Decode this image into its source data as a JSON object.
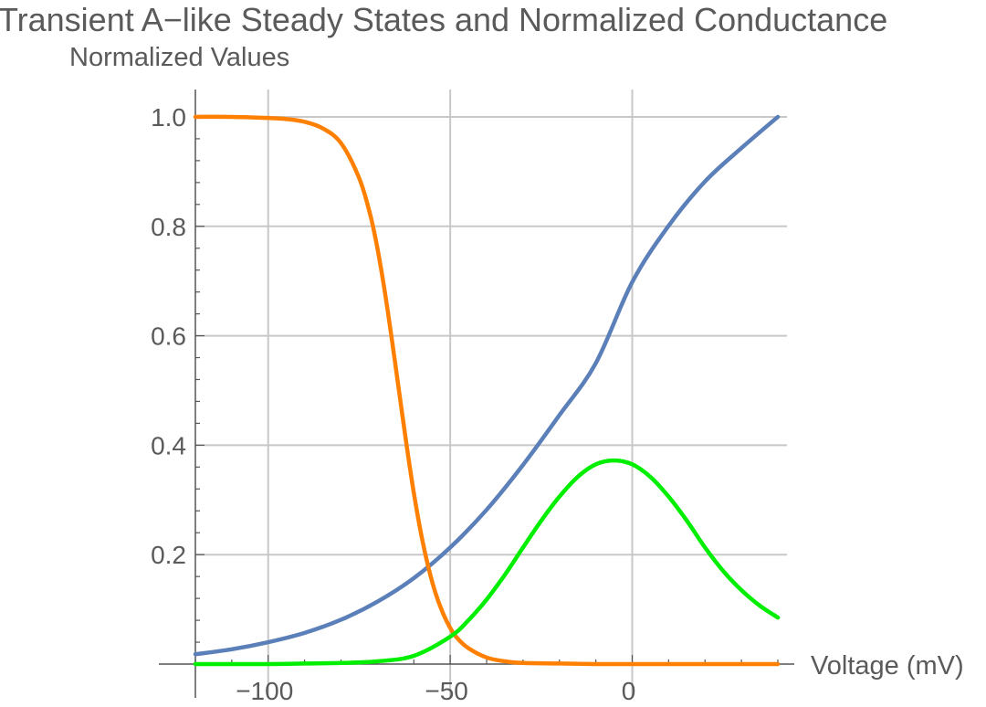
{
  "chart_data": {
    "type": "line",
    "title": "Transient A−like Steady States and Normalized Conductance",
    "xlabel": "Voltage (mV)",
    "ylabel": "Normalized Values",
    "xlim": [
      -120,
      40
    ],
    "ylim": [
      0,
      1.05
    ],
    "grid": true,
    "x_ticks": [
      -100,
      -50,
      0
    ],
    "x_tick_labels": [
      "−100",
      "−50",
      "0"
    ],
    "y_ticks": [
      0.2,
      0.4,
      0.6,
      0.8,
      1.0
    ],
    "y_tick_labels": [
      "0.2",
      "0.4",
      "0.6",
      "0.8",
      "1.0"
    ],
    "series": [
      {
        "color": "#5b7fb8",
        "x": [
          -120,
          -110,
          -100,
          -90,
          -80,
          -70,
          -60,
          -50,
          -40,
          -30,
          -20,
          -10,
          0,
          10,
          20,
          30,
          40
        ],
        "y": [
          0.018,
          0.027,
          0.04,
          0.057,
          0.081,
          0.114,
          0.157,
          0.213,
          0.282,
          0.364,
          0.455,
          0.55,
          0.698,
          0.801,
          0.882,
          0.943,
          1.0
        ]
      },
      {
        "color": "#ff8000",
        "x": [
          -120,
          -110,
          -100,
          -95,
          -90,
          -85,
          -80,
          -75,
          -72,
          -70,
          -68,
          -66,
          -64,
          -62,
          -60,
          -58,
          -56,
          -54,
          -52,
          -50,
          -48,
          -45,
          -40,
          -35,
          -30,
          -20,
          -10,
          0,
          20,
          40
        ],
        "y": [
          1.0,
          1.0,
          0.998,
          0.996,
          0.991,
          0.979,
          0.952,
          0.888,
          0.822,
          0.76,
          0.682,
          0.592,
          0.496,
          0.401,
          0.313,
          0.238,
          0.177,
          0.129,
          0.093,
          0.066,
          0.047,
          0.029,
          0.012,
          0.005,
          0.002,
          0.001,
          0.0,
          0.0,
          0.0,
          0.0
        ]
      },
      {
        "color": "#00ee00",
        "x": [
          -120,
          -100,
          -90,
          -80,
          -70,
          -60,
          -50,
          -45,
          -40,
          -35,
          -30,
          -25,
          -20,
          -15,
          -10,
          -5,
          0,
          5,
          10,
          15,
          20,
          25,
          30,
          35,
          40
        ],
        "y": [
          0.0,
          0.0,
          0.001,
          0.002,
          0.005,
          0.015,
          0.05,
          0.08,
          0.118,
          0.163,
          0.213,
          0.262,
          0.306,
          0.342,
          0.365,
          0.372,
          0.365,
          0.342,
          0.306,
          0.262,
          0.213,
          0.17,
          0.135,
          0.107,
          0.085
        ]
      }
    ]
  }
}
